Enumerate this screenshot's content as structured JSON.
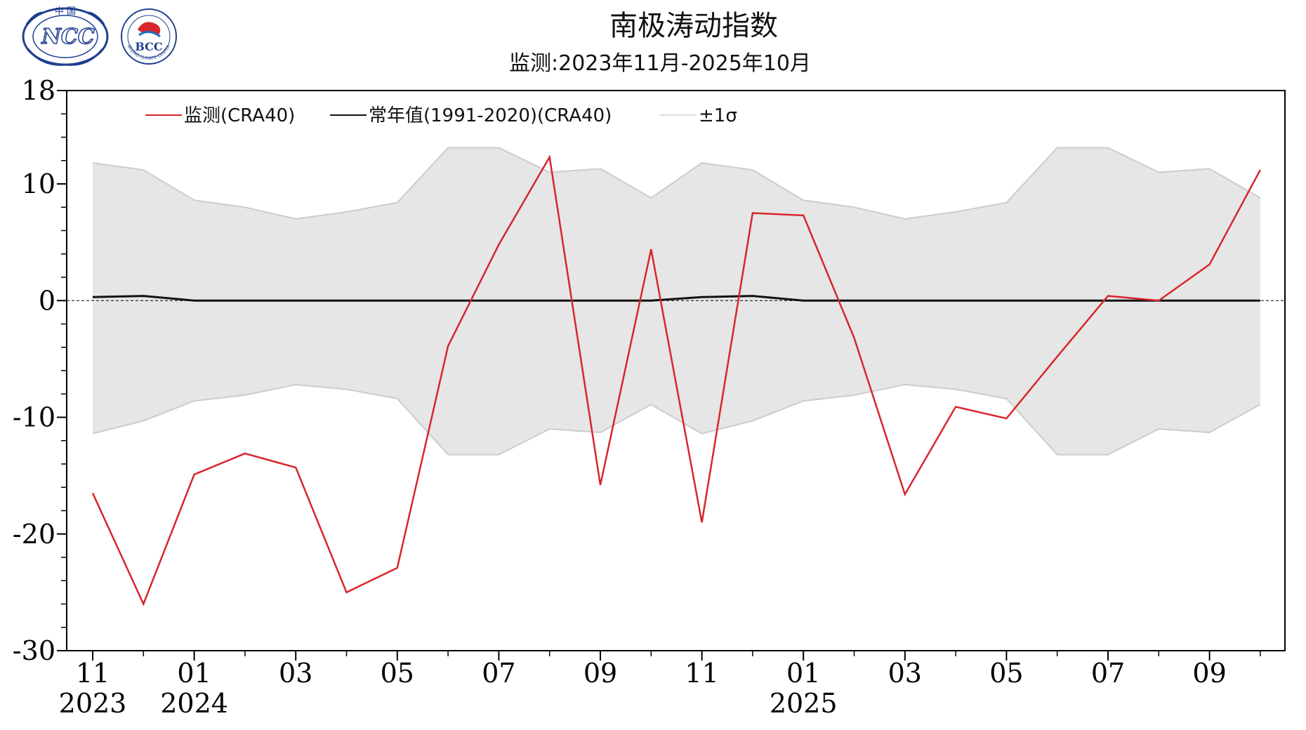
{
  "header": {
    "title": "南极涛动指数",
    "subtitle": "监测:2023年11月-2025年10月"
  },
  "logos": {
    "ncc": {
      "top_text": "中 国",
      "main_text": "NCC"
    },
    "bcc": {
      "main_text": "BCC",
      "ring_text": "BEIJING CLIMATE CENTER"
    }
  },
  "chart_data": {
    "type": "line",
    "title": "南极涛动指数",
    "subtitle": "监测:2023年11月-2025年10月",
    "x": [
      "2023-11",
      "2023-12",
      "2024-01",
      "2024-02",
      "2024-03",
      "2024-04",
      "2024-05",
      "2024-06",
      "2024-07",
      "2024-08",
      "2024-09",
      "2024-10",
      "2024-11",
      "2024-12",
      "2025-01",
      "2025-02",
      "2025-03",
      "2025-04",
      "2025-05",
      "2025-06",
      "2025-07",
      "2025-08",
      "2025-09",
      "2025-10"
    ],
    "xtick_labels": [
      {
        "index": 0,
        "month": "11",
        "year": "2023"
      },
      {
        "index": 2,
        "month": "01",
        "year": "2024"
      },
      {
        "index": 4,
        "month": "03",
        "year": ""
      },
      {
        "index": 6,
        "month": "05",
        "year": ""
      },
      {
        "index": 8,
        "month": "07",
        "year": ""
      },
      {
        "index": 10,
        "month": "09",
        "year": ""
      },
      {
        "index": 12,
        "month": "11",
        "year": ""
      },
      {
        "index": 14,
        "month": "01",
        "year": "2025"
      },
      {
        "index": 16,
        "month": "03",
        "year": ""
      },
      {
        "index": 18,
        "month": "05",
        "year": ""
      },
      {
        "index": 20,
        "month": "07",
        "year": ""
      },
      {
        "index": 22,
        "month": "09",
        "year": ""
      }
    ],
    "yticks": [
      {
        "value": 18,
        "label": "18"
      },
      {
        "value": 10,
        "label": "10"
      },
      {
        "value": 0,
        "label": "0"
      },
      {
        "value": -10,
        "label": "-10"
      },
      {
        "value": -20,
        "label": "-20"
      },
      {
        "value": -30,
        "label": "-30"
      }
    ],
    "ylim": [
      -30,
      18
    ],
    "xlabel": "",
    "ylabel": "",
    "legend_placement": "top-left",
    "series": [
      {
        "name": "监测(CRA40)",
        "color": "#d7262b",
        "values": [
          -16.5,
          -26.0,
          -14.9,
          -13.1,
          -14.3,
          -25.0,
          -22.9,
          -3.9,
          4.8,
          12.3,
          -15.8,
          4.4,
          -19.0,
          7.5,
          7.3,
          -3.2,
          -16.6,
          -9.1,
          -10.1,
          -4.8,
          0.4,
          0.0,
          3.1,
          11.2
        ]
      },
      {
        "name": "常年值(1991-2020)(CRA40)",
        "color": "#111111",
        "values": [
          0.3,
          0.4,
          0.0,
          0.0,
          0.0,
          0.0,
          0.0,
          0.0,
          0.0,
          0.0,
          0.0,
          0.0,
          0.3,
          0.4,
          0.0,
          0.0,
          0.0,
          0.0,
          0.0,
          0.0,
          0.0,
          0.0,
          0.0,
          0.0
        ]
      },
      {
        "name": "±1σ",
        "color": "#e6e6e6",
        "line_color": "#cccccc",
        "upper": [
          11.8,
          11.2,
          8.6,
          8.0,
          7.0,
          7.6,
          8.4,
          13.1,
          13.1,
          11.0,
          11.3,
          8.8,
          11.8,
          11.2,
          8.6,
          8.0,
          7.0,
          7.6,
          8.4,
          13.1,
          13.1,
          11.0,
          11.3,
          8.8
        ],
        "lower": [
          -11.4,
          -10.3,
          -8.6,
          -8.1,
          -7.2,
          -7.6,
          -8.4,
          -13.2,
          -13.2,
          -11.0,
          -11.3,
          -8.9,
          -11.4,
          -10.3,
          -8.6,
          -8.1,
          -7.2,
          -7.6,
          -8.4,
          -13.2,
          -13.2,
          -11.0,
          -11.3,
          -8.9
        ]
      }
    ],
    "zero_line": {
      "value": 0,
      "style": "dashed"
    },
    "grid": false
  }
}
